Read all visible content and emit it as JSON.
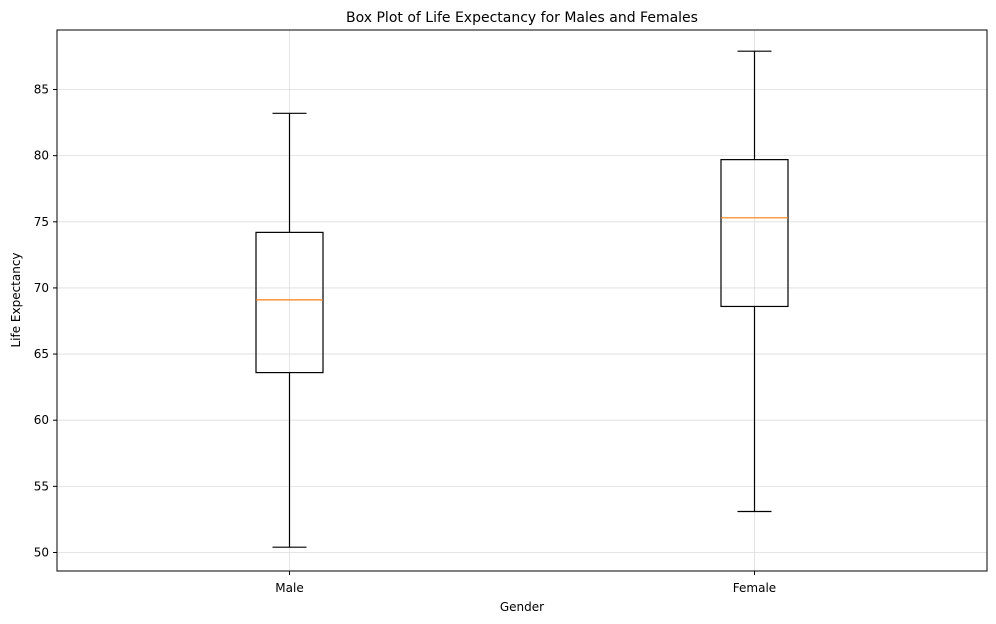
{
  "chart_data": {
    "type": "box",
    "title": "Box Plot of Life Expectancy for Males and Females",
    "xlabel": "Gender",
    "ylabel": "Life Expectancy",
    "ylim": [
      48.6,
      89.5
    ],
    "yticks": [
      50,
      55,
      60,
      65,
      70,
      75,
      80,
      85
    ],
    "grid": true,
    "colors": {
      "box": "#000000",
      "median": "#ff7f0e",
      "grid": "#dddddd"
    },
    "series": [
      {
        "name": "Male",
        "whisker_low": 50.4,
        "q1": 63.6,
        "median": 69.1,
        "q3": 74.2,
        "whisker_high": 83.2
      },
      {
        "name": "Female",
        "whisker_low": 53.1,
        "q1": 68.6,
        "median": 75.3,
        "q3": 79.7,
        "whisker_high": 87.9
      }
    ]
  }
}
